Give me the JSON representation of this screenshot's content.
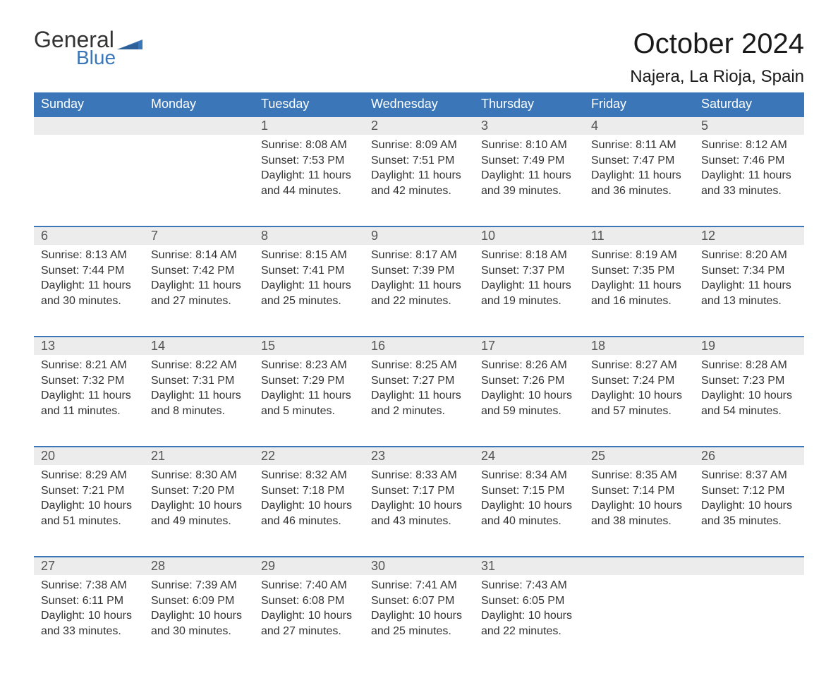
{
  "brand": {
    "word1": "General",
    "word2": "Blue",
    "flag_color": "#3a76b8"
  },
  "header": {
    "title": "October 2024",
    "location": "Najera, La Rioja, Spain"
  },
  "colors": {
    "header_bg": "#3a76b8",
    "header_text": "#ffffff",
    "daynum_bg": "#ececec",
    "daynum_border": "#3a76b8",
    "body_text": "#333333",
    "daynum_text": "#555555",
    "page_bg": "#ffffff"
  },
  "fonts": {
    "title_size": 40,
    "location_size": 24,
    "th_size": 18,
    "daynum_size": 18,
    "cell_size": 16
  },
  "weekdays": [
    "Sunday",
    "Monday",
    "Tuesday",
    "Wednesday",
    "Thursday",
    "Friday",
    "Saturday"
  ],
  "weeks": [
    [
      null,
      null,
      {
        "n": "1",
        "sunrise": "8:08 AM",
        "sunset": "7:53 PM",
        "daylight": "11 hours and 44 minutes."
      },
      {
        "n": "2",
        "sunrise": "8:09 AM",
        "sunset": "7:51 PM",
        "daylight": "11 hours and 42 minutes."
      },
      {
        "n": "3",
        "sunrise": "8:10 AM",
        "sunset": "7:49 PM",
        "daylight": "11 hours and 39 minutes."
      },
      {
        "n": "4",
        "sunrise": "8:11 AM",
        "sunset": "7:47 PM",
        "daylight": "11 hours and 36 minutes."
      },
      {
        "n": "5",
        "sunrise": "8:12 AM",
        "sunset": "7:46 PM",
        "daylight": "11 hours and 33 minutes."
      }
    ],
    [
      {
        "n": "6",
        "sunrise": "8:13 AM",
        "sunset": "7:44 PM",
        "daylight": "11 hours and 30 minutes."
      },
      {
        "n": "7",
        "sunrise": "8:14 AM",
        "sunset": "7:42 PM",
        "daylight": "11 hours and 27 minutes."
      },
      {
        "n": "8",
        "sunrise": "8:15 AM",
        "sunset": "7:41 PM",
        "daylight": "11 hours and 25 minutes."
      },
      {
        "n": "9",
        "sunrise": "8:17 AM",
        "sunset": "7:39 PM",
        "daylight": "11 hours and 22 minutes."
      },
      {
        "n": "10",
        "sunrise": "8:18 AM",
        "sunset": "7:37 PM",
        "daylight": "11 hours and 19 minutes."
      },
      {
        "n": "11",
        "sunrise": "8:19 AM",
        "sunset": "7:35 PM",
        "daylight": "11 hours and 16 minutes."
      },
      {
        "n": "12",
        "sunrise": "8:20 AM",
        "sunset": "7:34 PM",
        "daylight": "11 hours and 13 minutes."
      }
    ],
    [
      {
        "n": "13",
        "sunrise": "8:21 AM",
        "sunset": "7:32 PM",
        "daylight": "11 hours and 11 minutes."
      },
      {
        "n": "14",
        "sunrise": "8:22 AM",
        "sunset": "7:31 PM",
        "daylight": "11 hours and 8 minutes."
      },
      {
        "n": "15",
        "sunrise": "8:23 AM",
        "sunset": "7:29 PM",
        "daylight": "11 hours and 5 minutes."
      },
      {
        "n": "16",
        "sunrise": "8:25 AM",
        "sunset": "7:27 PM",
        "daylight": "11 hours and 2 minutes."
      },
      {
        "n": "17",
        "sunrise": "8:26 AM",
        "sunset": "7:26 PM",
        "daylight": "10 hours and 59 minutes."
      },
      {
        "n": "18",
        "sunrise": "8:27 AM",
        "sunset": "7:24 PM",
        "daylight": "10 hours and 57 minutes."
      },
      {
        "n": "19",
        "sunrise": "8:28 AM",
        "sunset": "7:23 PM",
        "daylight": "10 hours and 54 minutes."
      }
    ],
    [
      {
        "n": "20",
        "sunrise": "8:29 AM",
        "sunset": "7:21 PM",
        "daylight": "10 hours and 51 minutes."
      },
      {
        "n": "21",
        "sunrise": "8:30 AM",
        "sunset": "7:20 PM",
        "daylight": "10 hours and 49 minutes."
      },
      {
        "n": "22",
        "sunrise": "8:32 AM",
        "sunset": "7:18 PM",
        "daylight": "10 hours and 46 minutes."
      },
      {
        "n": "23",
        "sunrise": "8:33 AM",
        "sunset": "7:17 PM",
        "daylight": "10 hours and 43 minutes."
      },
      {
        "n": "24",
        "sunrise": "8:34 AM",
        "sunset": "7:15 PM",
        "daylight": "10 hours and 40 minutes."
      },
      {
        "n": "25",
        "sunrise": "8:35 AM",
        "sunset": "7:14 PM",
        "daylight": "10 hours and 38 minutes."
      },
      {
        "n": "26",
        "sunrise": "8:37 AM",
        "sunset": "7:12 PM",
        "daylight": "10 hours and 35 minutes."
      }
    ],
    [
      {
        "n": "27",
        "sunrise": "7:38 AM",
        "sunset": "6:11 PM",
        "daylight": "10 hours and 33 minutes."
      },
      {
        "n": "28",
        "sunrise": "7:39 AM",
        "sunset": "6:09 PM",
        "daylight": "10 hours and 30 minutes."
      },
      {
        "n": "29",
        "sunrise": "7:40 AM",
        "sunset": "6:08 PM",
        "daylight": "10 hours and 27 minutes."
      },
      {
        "n": "30",
        "sunrise": "7:41 AM",
        "sunset": "6:07 PM",
        "daylight": "10 hours and 25 minutes."
      },
      {
        "n": "31",
        "sunrise": "7:43 AM",
        "sunset": "6:05 PM",
        "daylight": "10 hours and 22 minutes."
      },
      null,
      null
    ]
  ],
  "labels": {
    "sunrise": "Sunrise: ",
    "sunset": "Sunset: ",
    "daylight": "Daylight: "
  }
}
